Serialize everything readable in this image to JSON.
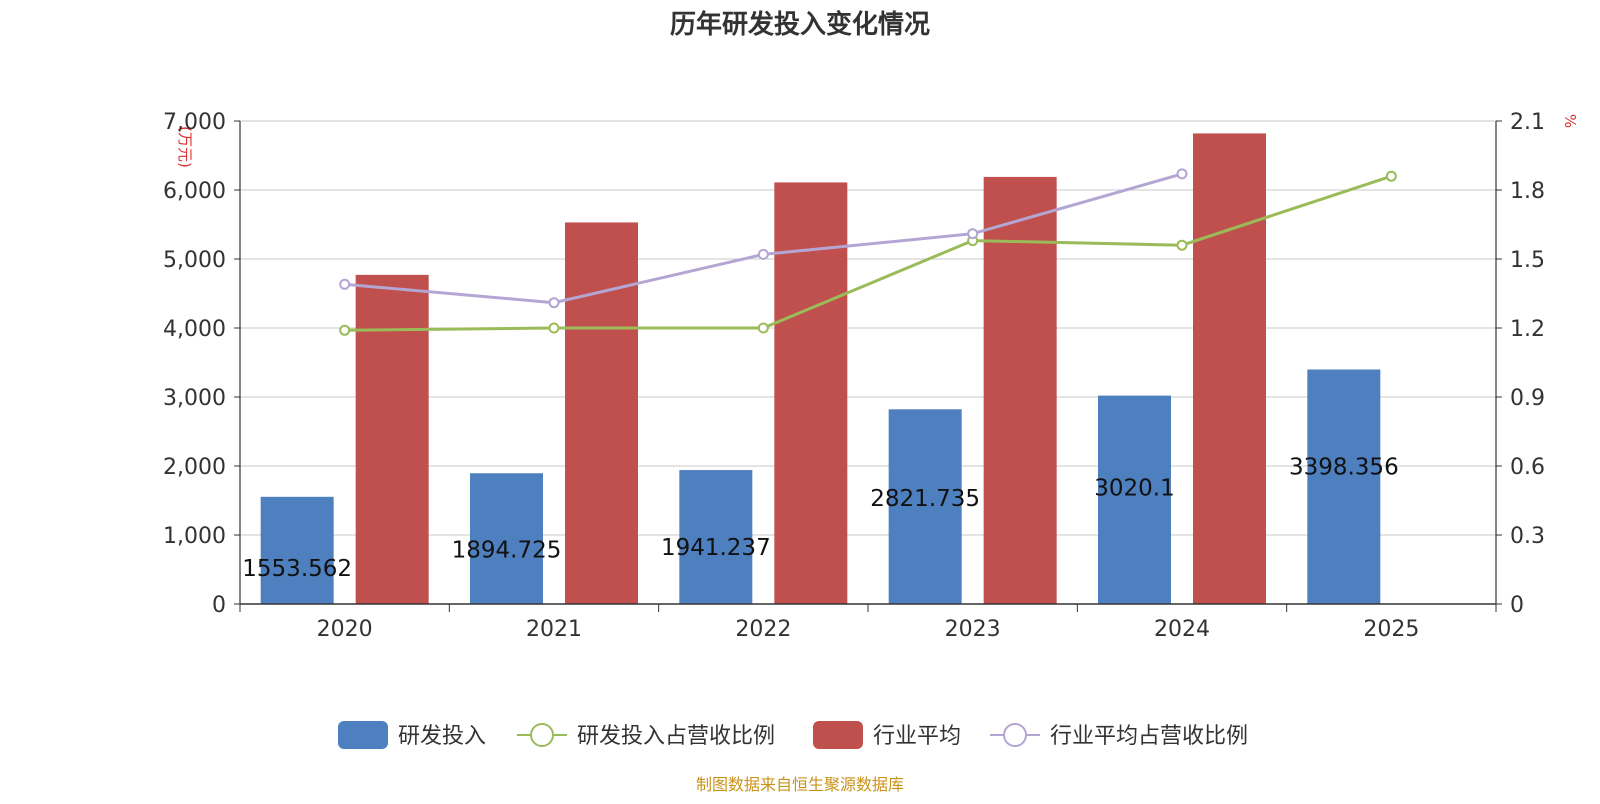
{
  "chart_data": {
    "type": "bar",
    "title": "历年研发投入变化情况",
    "left_axis": {
      "unit": "(万元)",
      "ylim": [
        0,
        7000
      ],
      "ticks": [
        0,
        1000,
        2000,
        3000,
        4000,
        5000,
        6000,
        7000
      ],
      "tick_labels": [
        "0",
        "1,000",
        "2,000",
        "3,000",
        "4,000",
        "5,000",
        "6,000",
        "7,000"
      ]
    },
    "right_axis": {
      "unit": "%",
      "ylim": [
        0,
        2.1
      ],
      "ticks": [
        0,
        0.3,
        0.6,
        0.9,
        1.2,
        1.5,
        1.8,
        2.1
      ],
      "tick_labels": [
        "0",
        "0.3",
        "0.6",
        "0.9",
        "1.2",
        "1.5",
        "1.8",
        "2.1"
      ]
    },
    "categories": [
      "2020",
      "2021",
      "2022",
      "2023",
      "2024",
      "2025"
    ],
    "grid": true,
    "legend_position": "bottom",
    "series": [
      {
        "name": "研发投入",
        "type": "bar",
        "axis": "left",
        "color": "#4e7fbf",
        "values": [
          1553.562,
          1894.725,
          1941.237,
          2821.735,
          3020.1,
          3398.356
        ],
        "labels": [
          "1553.562",
          "1894.725",
          "1941.237",
          "2821.735",
          "3020.1",
          "3398.356"
        ]
      },
      {
        "name": "研发投入占营收比例",
        "type": "line",
        "axis": "right",
        "color": "#9bbb59",
        "values": [
          1.19,
          1.2,
          1.2,
          1.58,
          1.56,
          1.86
        ]
      },
      {
        "name": "行业平均",
        "type": "bar",
        "axis": "left",
        "color": "#c0504d",
        "values": [
          4770,
          5530,
          6110,
          6190,
          6820,
          null
        ]
      },
      {
        "name": "行业平均占营收比例",
        "type": "line",
        "axis": "right",
        "color": "#b3a6d3",
        "values": [
          1.39,
          1.31,
          1.52,
          1.61,
          1.87,
          null
        ]
      }
    ],
    "source_note": "制图数据来自恒生聚源数据库"
  }
}
